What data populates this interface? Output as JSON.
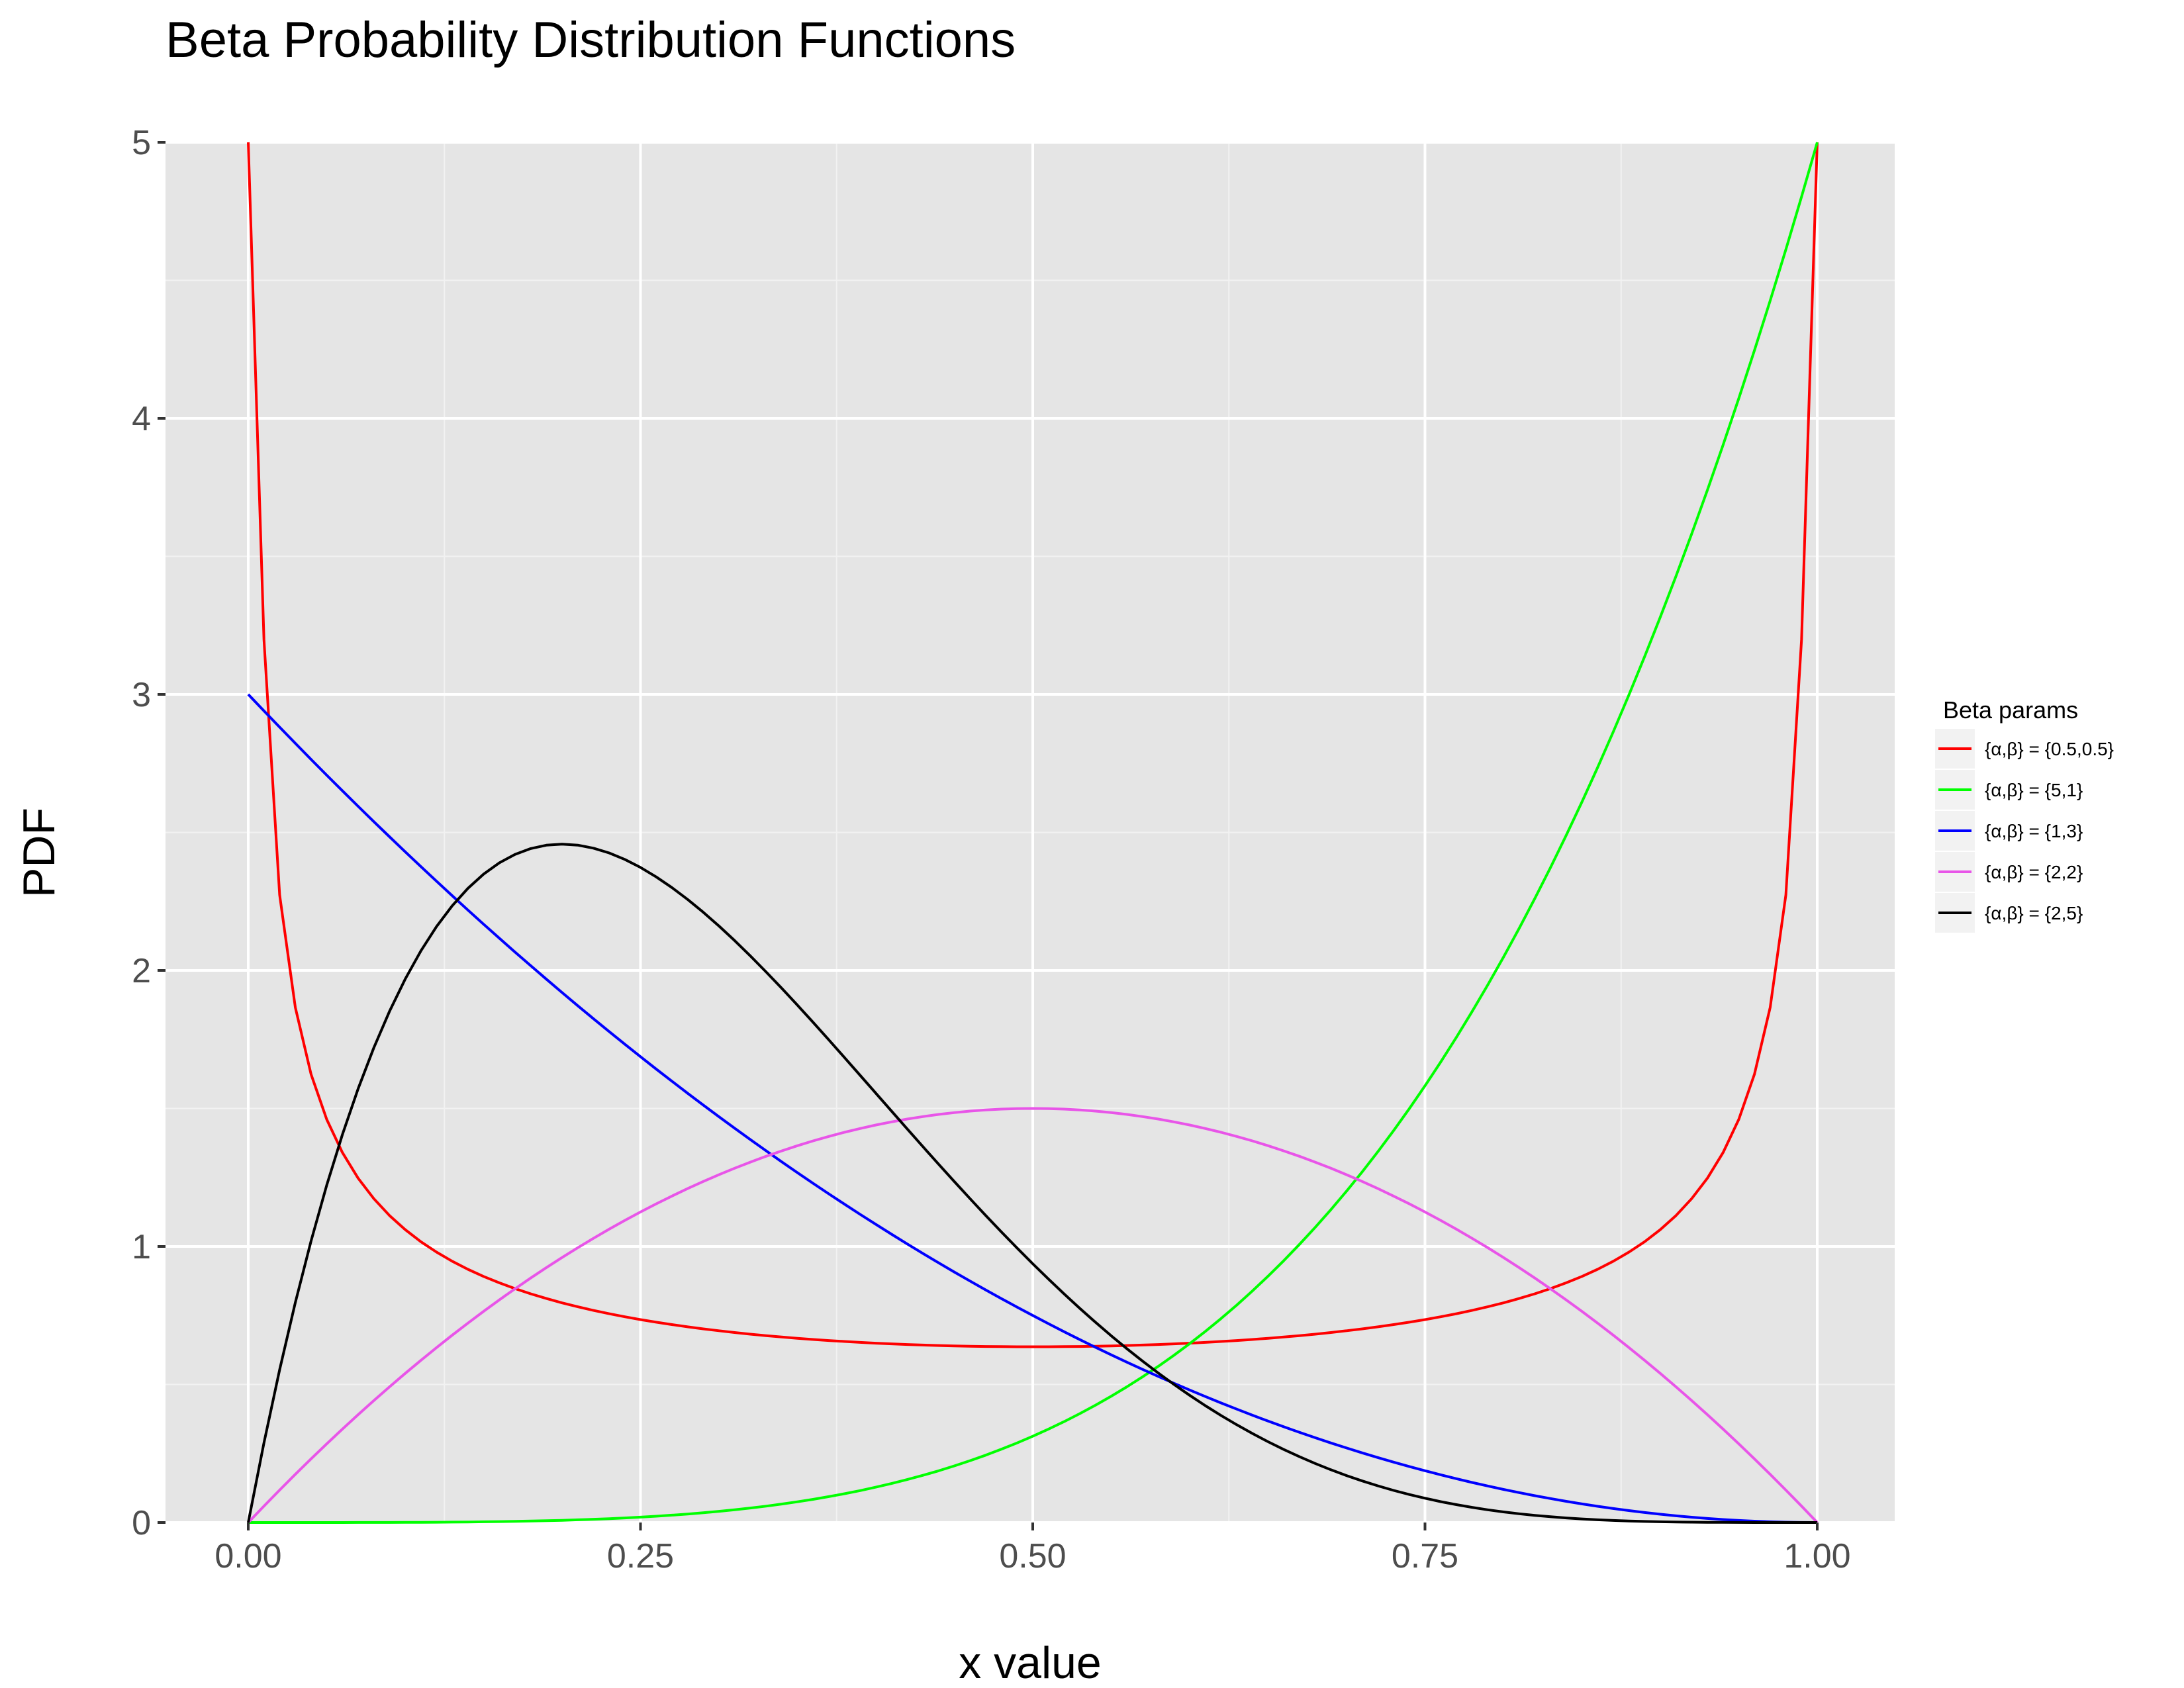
{
  "chart_data": {
    "type": "line",
    "title": "Beta Probability Distribution Functions",
    "xlabel": "x value",
    "ylabel": "PDF",
    "xlim": [
      0,
      1
    ],
    "ylim": [
      0,
      5
    ],
    "x_ticks": [
      "0.00",
      "0.25",
      "0.50",
      "0.75",
      "1.00"
    ],
    "y_ticks": [
      "0",
      "1",
      "2",
      "3",
      "4",
      "5"
    ],
    "grid": true,
    "legend": {
      "title": "Beta params",
      "position": "right"
    },
    "series": [
      {
        "name": "{α,β} = {0.5,0.5}",
        "color": "#ff0000",
        "alpha": 0.5,
        "beta": 0.5,
        "points": [
          [
            0.001,
            5.0
          ],
          [
            0.01,
            3.2
          ],
          [
            0.02,
            2.27
          ],
          [
            0.05,
            1.46
          ],
          [
            0.1,
            1.06
          ],
          [
            0.2,
            0.8
          ],
          [
            0.3,
            0.69
          ],
          [
            0.4,
            0.65
          ],
          [
            0.5,
            0.64
          ],
          [
            0.6,
            0.65
          ],
          [
            0.7,
            0.69
          ],
          [
            0.8,
            0.8
          ],
          [
            0.9,
            1.06
          ],
          [
            0.95,
            1.46
          ],
          [
            0.98,
            2.27
          ],
          [
            0.99,
            3.2
          ],
          [
            0.999,
            5.0
          ]
        ]
      },
      {
        "name": "{α,β} = {5,1}",
        "color": "#00ff00",
        "alpha": 5,
        "beta": 1,
        "points": [
          [
            0,
            0
          ],
          [
            0.2,
            0.008
          ],
          [
            0.4,
            0.128
          ],
          [
            0.5,
            0.3125
          ],
          [
            0.6,
            0.648
          ],
          [
            0.7,
            1.2
          ],
          [
            0.8,
            2.05
          ],
          [
            0.9,
            3.28
          ],
          [
            1.0,
            5.0
          ]
        ]
      },
      {
        "name": "{α,β} = {1,3}",
        "color": "#0000ff",
        "alpha": 1,
        "beta": 3,
        "points": [
          [
            0,
            3.0
          ],
          [
            0.1,
            2.43
          ],
          [
            0.2,
            1.92
          ],
          [
            0.3,
            1.47
          ],
          [
            0.4,
            1.08
          ],
          [
            0.5,
            0.75
          ],
          [
            0.6,
            0.48
          ],
          [
            0.7,
            0.27
          ],
          [
            0.8,
            0.12
          ],
          [
            0.9,
            0.03
          ],
          [
            1.0,
            0
          ]
        ]
      },
      {
        "name": "{α,β} = {2,2}",
        "color": "#e855e8",
        "alpha": 2,
        "beta": 2,
        "points": [
          [
            0,
            0
          ],
          [
            0.1,
            0.54
          ],
          [
            0.2,
            0.96
          ],
          [
            0.3,
            1.26
          ],
          [
            0.4,
            1.44
          ],
          [
            0.5,
            1.5
          ],
          [
            0.6,
            1.44
          ],
          [
            0.7,
            1.26
          ],
          [
            0.8,
            0.96
          ],
          [
            0.9,
            0.54
          ],
          [
            1.0,
            0
          ]
        ]
      },
      {
        "name": "{α,β} = {2,5}",
        "color": "#000000",
        "alpha": 2,
        "beta": 5,
        "points": [
          [
            0,
            0
          ],
          [
            0.1,
            1.97
          ],
          [
            0.2,
            2.46
          ],
          [
            0.3,
            2.16
          ],
          [
            0.4,
            1.56
          ],
          [
            0.5,
            0.94
          ],
          [
            0.6,
            0.46
          ],
          [
            0.7,
            0.17
          ],
          [
            0.8,
            0.04
          ],
          [
            0.9,
            0.003
          ],
          [
            1.0,
            0
          ]
        ]
      }
    ]
  }
}
